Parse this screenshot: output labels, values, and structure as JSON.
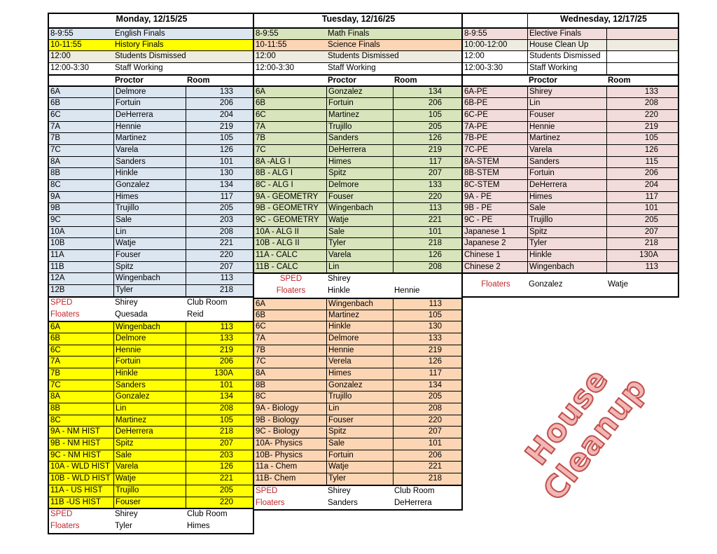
{
  "colors": {
    "blue": "#dce6f1",
    "yellow": "#ffff00",
    "beige": "#eeece1",
    "green": "#d8e4bc",
    "orange": "#fcd5b4",
    "pink": "#f2dcdb",
    "white": "#ffffff",
    "red_text": "#c0272d"
  },
  "watermark": "House Cleanup",
  "days": [
    {
      "title": "Monday, 12/15/25",
      "schedule": [
        {
          "time": "8-9:55",
          "event": "English Finals",
          "color": "blue"
        },
        {
          "time": "10-11:55",
          "event": "History Finals",
          "color": "yellow"
        },
        {
          "time": "12:00",
          "event": "Students Dismissed",
          "color": "beige"
        },
        {
          "time": "12:00-3:30",
          "event": "Staff Working",
          "color": "white"
        }
      ],
      "header": {
        "proctor": "Proctor",
        "room": "Room"
      },
      "sections": [
        {
          "color": "blue",
          "rows": [
            [
              "6A",
              "Delmore",
              "133"
            ],
            [
              "6B",
              "Fortuin",
              "206"
            ],
            [
              "6C",
              "DeHerrera",
              "204"
            ],
            [
              "7A",
              "Hennie",
              "219"
            ],
            [
              "7B",
              "Martinez",
              "105"
            ],
            [
              "7C",
              "Varela",
              "126"
            ],
            [
              "8A",
              "Sanders",
              "101"
            ],
            [
              "8B",
              "Hinkle",
              "130"
            ],
            [
              "8C",
              "Gonzalez",
              "134"
            ],
            [
              "9A",
              "Himes",
              "117"
            ],
            [
              "9B",
              "Trujillo",
              "205"
            ],
            [
              "9C",
              "Sale",
              "203"
            ],
            [
              "10A",
              "Lin",
              "208"
            ],
            [
              "10B",
              "Watje",
              "221"
            ],
            [
              "11A",
              "Fouser",
              "220"
            ],
            [
              "11B",
              "Spitz",
              "207"
            ],
            [
              "12A",
              "Wingenbach",
              "113"
            ],
            [
              "12B",
              "Tyler",
              "218"
            ]
          ],
          "extra": [
            [
              "SPED",
              "Shirey",
              "Club Room"
            ],
            [
              "Floaters",
              "Quesada",
              "Reid"
            ]
          ]
        },
        {
          "color": "yellow",
          "rows": [
            [
              "6A",
              "Wingenbach",
              "113"
            ],
            [
              "6B",
              "Delmore",
              "133"
            ],
            [
              "6C",
              "Hennie",
              "219"
            ],
            [
              "7A",
              "Fortuin",
              "206"
            ],
            [
              "7B",
              "Hinkle",
              "130A"
            ],
            [
              "7C",
              "Sanders",
              "101"
            ],
            [
              "8A",
              "Gonzalez",
              "134"
            ],
            [
              "8B",
              "Lin",
              "208"
            ],
            [
              "8C",
              "Martinez",
              "105"
            ],
            [
              "9A - NM HIST",
              "DeHerrera",
              "218"
            ],
            [
              "9B - NM HIST",
              "Spitz",
              "207"
            ],
            [
              "9C - NM HIST",
              "Sale",
              "203"
            ],
            [
              "10A  - WLD HIST",
              "Varela",
              "126"
            ],
            [
              "10B - WLD HIST",
              "Watje",
              "221"
            ],
            [
              "11A - US HIST",
              "Trujillo",
              "205"
            ],
            [
              "11B -US HIST",
              "Fouser",
              "220"
            ]
          ],
          "extra": [
            [
              "SPED",
              "Shirey",
              "Club Room"
            ],
            [
              "Floaters",
              "Tyler",
              "Himes"
            ]
          ]
        }
      ]
    },
    {
      "title": "Tuesday, 12/16/25",
      "schedule": [
        {
          "time": "8-9:55",
          "event": "Math Finals",
          "color": "green"
        },
        {
          "time": "10-11:55",
          "event": "Science Finals",
          "color": "orange"
        },
        {
          "time": "12:00",
          "event": "Students Dismissed",
          "color": "beige"
        },
        {
          "time": "12:00-3:30",
          "event": "Staff Working",
          "color": "white"
        }
      ],
      "header": {
        "proctor": "Proctor",
        "room": "Room"
      },
      "sections": [
        {
          "color": "green",
          "rows": [
            [
              "6A",
              "Gonzalez",
              "134"
            ],
            [
              "6B",
              "Fortuin",
              "206"
            ],
            [
              "6C",
              "Martinez",
              "105"
            ],
            [
              "7A",
              "Trujillo",
              "205"
            ],
            [
              "7B",
              "Sanders",
              "126"
            ],
            [
              "7C",
              "DeHerrera",
              "219"
            ],
            [
              "8A -ALG I",
              "Himes",
              "117"
            ],
            [
              "8B - ALG I",
              "Spitz",
              "207"
            ],
            [
              "8C - ALG I",
              "Delmore",
              "133"
            ],
            [
              "9A - GEOMETRY",
              "Fouser",
              "220"
            ],
            [
              "9B - GEOMETRY",
              "Wingenbach",
              "113"
            ],
            [
              "9C - GEOMETRY",
              "Watje",
              "221"
            ],
            [
              "10A  - ALG II",
              "Sale",
              "101"
            ],
            [
              "10B - ALG II",
              "Tyler",
              "218"
            ],
            [
              "11A - CALC",
              "Varela",
              "126"
            ],
            [
              "11B - CALC",
              "Lin",
              "208"
            ]
          ],
          "extra": [
            [
              "SPED",
              "Shirey",
              ""
            ],
            [
              "Floaters",
              "Hinkle",
              "Hennie"
            ]
          ],
          "extra_centered": true
        },
        {
          "color": "orange",
          "rows": [
            [
              "6A",
              "Wingenbach",
              "113"
            ],
            [
              "6B",
              "Martinez",
              "105"
            ],
            [
              "6C",
              "Hinkle",
              "130"
            ],
            [
              "7A",
              "Delmore",
              "133"
            ],
            [
              "7B",
              "Hennie",
              "219"
            ],
            [
              "7C",
              "Verela",
              "126"
            ],
            [
              "8A",
              "Himes",
              "117"
            ],
            [
              "8B",
              "Gonzalez",
              "134"
            ],
            [
              "8C",
              "Trujillo",
              "205"
            ],
            [
              "9A - Biology",
              "Lin",
              "208"
            ],
            [
              "9B - Biology",
              "Fouser",
              "220"
            ],
            [
              "9C - Biology",
              "Spitz",
              "207"
            ],
            [
              "10A- Physics",
              "Sale",
              "101"
            ],
            [
              "10B- Physics",
              "Fortuin",
              "206"
            ],
            [
              "11a - Chem",
              "Watje",
              "221"
            ],
            [
              "11B- Chem",
              "Tyler",
              "218"
            ]
          ],
          "extra": [
            [
              "SPED",
              "Shirey",
              "Club Room"
            ],
            [
              "Floaters",
              "Sanders",
              "DeHerrera"
            ]
          ]
        }
      ]
    },
    {
      "title": "Wednesday, 12/17/25",
      "schedule": [
        {
          "time": "8-9:55",
          "event": "Elective Finals",
          "color": "pink"
        },
        {
          "time": "10:00-12:00",
          "event": "House Clean Up",
          "color": "beige"
        },
        {
          "time": "12:00",
          "event": "Students Dismissed",
          "color": "white"
        },
        {
          "time": "12:00-3:30",
          "event": "Staff Working",
          "color": "white"
        }
      ],
      "header": {
        "proctor": "Proctor",
        "room": "Room"
      },
      "sections": [
        {
          "color": "pink",
          "rows": [
            [
              "6A-PE",
              "Shirey",
              "133"
            ],
            [
              "6B-PE",
              "Lin",
              "208"
            ],
            [
              "6C-PE",
              "Fouser",
              "220"
            ],
            [
              "7A-PE",
              "Hennie",
              "219"
            ],
            [
              "7B-PE",
              "Martinez",
              "105"
            ],
            [
              "7C-PE",
              "Varela",
              "126"
            ],
            [
              "8A-STEM",
              "Sanders",
              "115"
            ],
            [
              "8B-STEM",
              "Fortuin",
              "206"
            ],
            [
              "8C-STEM",
              "DeHerrera",
              "204"
            ],
            [
              "9A - PE",
              "Himes",
              "117"
            ],
            [
              "9B - PE",
              "Sale",
              "101"
            ],
            [
              "9C - PE",
              "Trujillo",
              "205"
            ],
            [
              "Japanese 1",
              "Spitz",
              "207"
            ],
            [
              "Japanese 2",
              "Tyler",
              "218"
            ],
            [
              "Chinese 1",
              "Hinkle",
              "130A"
            ],
            [
              "Chinese 2",
              "Wingenbach",
              "113"
            ]
          ],
          "extra": [
            [
              "Floaters",
              "Gonzalez",
              "Watje"
            ]
          ],
          "extra_centered": true,
          "extra_tall": true
        }
      ]
    }
  ]
}
